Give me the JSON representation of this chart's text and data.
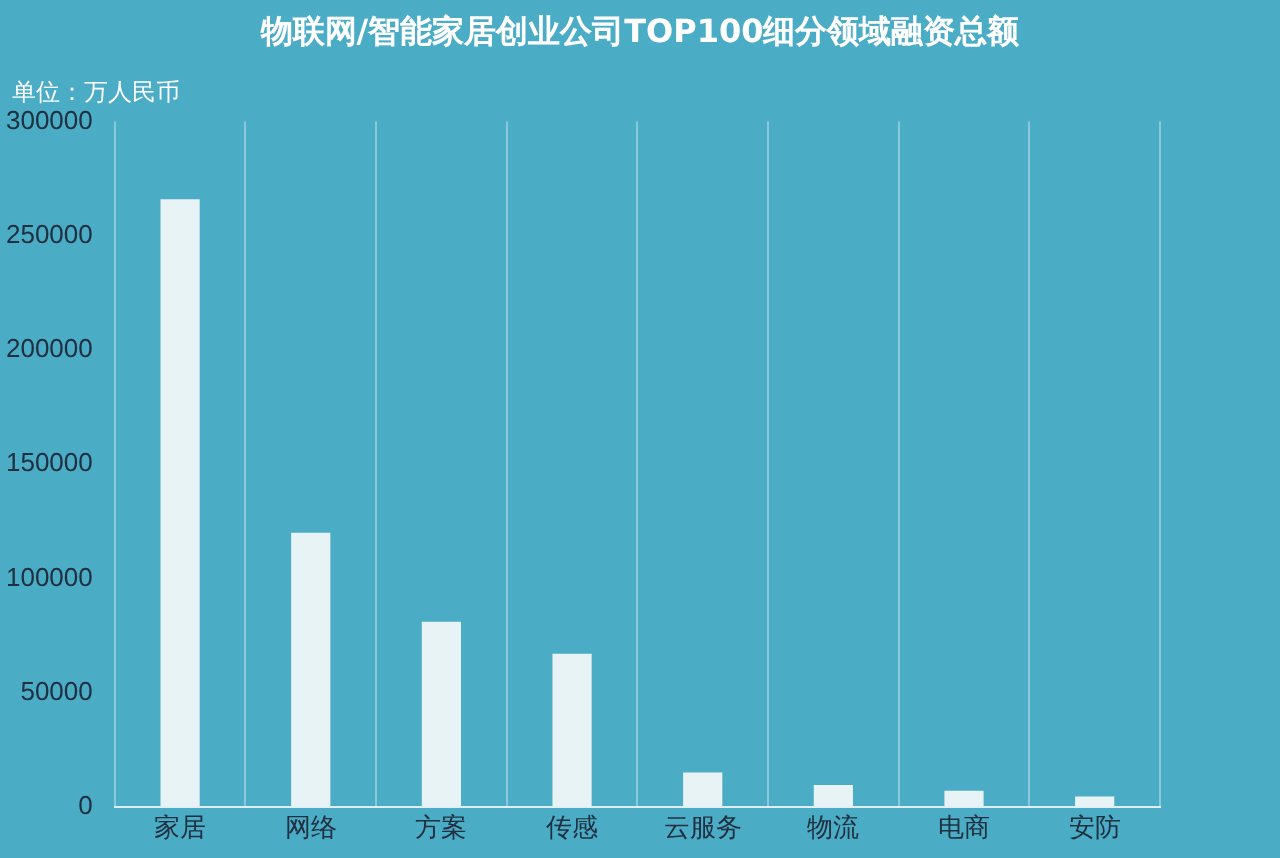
{
  "chart_data": {
    "type": "bar",
    "title": "物联网/智能家居创业公司TOP100细分领域融资总额",
    "ylabel": "单位：万人民币",
    "categories": [
      "家居",
      "网络",
      "方案",
      "传感",
      "云服务",
      "物流",
      "电商",
      "安防"
    ],
    "series": [
      {
        "color": "#e8f3f6",
        "values": [
          266000,
          120000,
          81000,
          67000,
          15000,
          9500,
          7000,
          4500
        ]
      }
    ],
    "ylim": [
      0,
      300000
    ],
    "yticks": [
      0,
      50000,
      100000,
      150000,
      200000,
      250000,
      300000
    ],
    "grid": "x",
    "legend": false
  }
}
